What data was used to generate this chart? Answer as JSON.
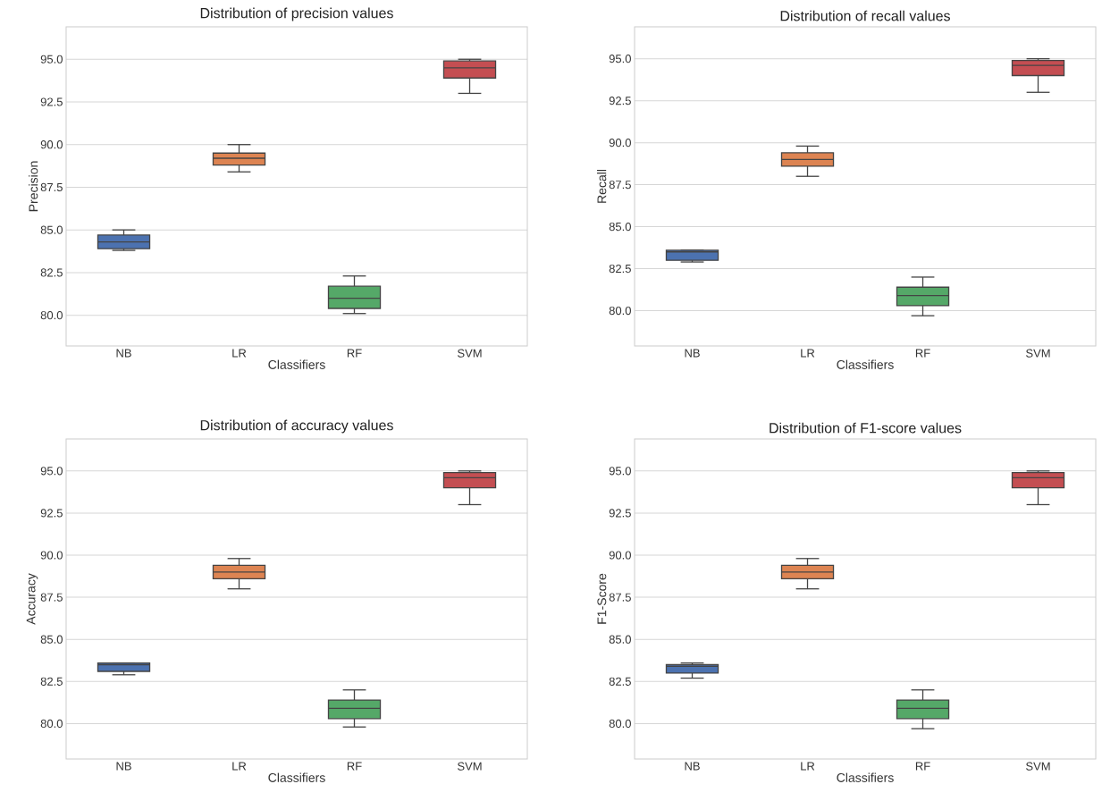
{
  "chart_data": [
    {
      "type": "box",
      "title": "Distribution of precision values",
      "xlabel": "Classifiers",
      "ylabel": "Precision",
      "categories": [
        "NB",
        "LR",
        "RF",
        "SVM"
      ],
      "colors": [
        "#4c72b0",
        "#dd8452",
        "#55a868",
        "#c44e52"
      ],
      "grid": "y",
      "ylim": [
        78.2,
        96.9
      ],
      "yticks": [
        {
          "value": 80,
          "label": "80.0"
        },
        {
          "value": 82.5,
          "label": "82.5"
        },
        {
          "value": 85,
          "label": "85.0"
        },
        {
          "value": 87.5,
          "label": "87.5"
        },
        {
          "value": 90,
          "label": "90.0"
        },
        {
          "value": 92.5,
          "label": "92.5"
        },
        {
          "value": 95,
          "label": "95.0"
        }
      ],
      "boxes": [
        {
          "low": 83.8,
          "q1": 83.9,
          "median": 84.3,
          "q3": 84.7,
          "high": 85.0
        },
        {
          "low": 88.4,
          "q1": 88.8,
          "median": 89.2,
          "q3": 89.5,
          "high": 90.0
        },
        {
          "low": 80.1,
          "q1": 80.4,
          "median": 81.0,
          "q3": 81.7,
          "high": 82.3
        },
        {
          "low": 93.0,
          "q1": 93.9,
          "median": 94.5,
          "q3": 94.9,
          "high": 95.0
        }
      ]
    },
    {
      "type": "box",
      "title": "Distribution of recall values",
      "xlabel": "Classifiers",
      "ylabel": "Recall",
      "categories": [
        "NB",
        "LR",
        "RF",
        "SVM"
      ],
      "colors": [
        "#4c72b0",
        "#dd8452",
        "#55a868",
        "#c44e52"
      ],
      "grid": "y",
      "ylim": [
        77.9,
        96.9
      ],
      "yticks": [
        {
          "value": 80,
          "label": "80.0"
        },
        {
          "value": 82.5,
          "label": "82.5"
        },
        {
          "value": 85,
          "label": "85.0"
        },
        {
          "value": 87.5,
          "label": "87.5"
        },
        {
          "value": 90,
          "label": "90.0"
        },
        {
          "value": 92.5,
          "label": "92.5"
        },
        {
          "value": 95,
          "label": "95.0"
        }
      ],
      "boxes": [
        {
          "low": 82.9,
          "q1": 83.0,
          "median": 83.5,
          "q3": 83.6,
          "high": 83.6
        },
        {
          "low": 88.0,
          "q1": 88.6,
          "median": 89.0,
          "q3": 89.4,
          "high": 89.8
        },
        {
          "low": 79.7,
          "q1": 80.3,
          "median": 80.9,
          "q3": 81.4,
          "high": 82.0
        },
        {
          "low": 93.0,
          "q1": 94.0,
          "median": 94.6,
          "q3": 94.9,
          "high": 95.0
        }
      ]
    },
    {
      "type": "box",
      "title": "Distribution of accuracy values",
      "xlabel": "Classifiers",
      "ylabel": "Accuracy",
      "categories": [
        "NB",
        "LR",
        "RF",
        "SVM"
      ],
      "colors": [
        "#4c72b0",
        "#dd8452",
        "#55a868",
        "#c44e52"
      ],
      "grid": "y",
      "ylim": [
        77.9,
        96.9
      ],
      "yticks": [
        {
          "value": 80,
          "label": "80.0"
        },
        {
          "value": 82.5,
          "label": "82.5"
        },
        {
          "value": 85,
          "label": "85.0"
        },
        {
          "value": 87.5,
          "label": "87.5"
        },
        {
          "value": 90,
          "label": "90.0"
        },
        {
          "value": 92.5,
          "label": "92.5"
        },
        {
          "value": 95,
          "label": "95.0"
        }
      ],
      "boxes": [
        {
          "low": 82.9,
          "q1": 83.1,
          "median": 83.5,
          "q3": 83.6,
          "high": 83.6
        },
        {
          "low": 88.0,
          "q1": 88.6,
          "median": 89.0,
          "q3": 89.4,
          "high": 89.8
        },
        {
          "low": 79.8,
          "q1": 80.3,
          "median": 80.9,
          "q3": 81.4,
          "high": 82.0
        },
        {
          "low": 93.0,
          "q1": 94.0,
          "median": 94.6,
          "q3": 94.9,
          "high": 95.0
        }
      ]
    },
    {
      "type": "box",
      "title": "Distribution of F1-score values",
      "xlabel": "Classifiers",
      "ylabel": "F1-Score",
      "categories": [
        "NB",
        "LR",
        "RF",
        "SVM"
      ],
      "colors": [
        "#4c72b0",
        "#dd8452",
        "#55a868",
        "#c44e52"
      ],
      "grid": "y",
      "ylim": [
        77.9,
        96.9
      ],
      "yticks": [
        {
          "value": 80,
          "label": "80.0"
        },
        {
          "value": 82.5,
          "label": "82.5"
        },
        {
          "value": 85,
          "label": "85.0"
        },
        {
          "value": 87.5,
          "label": "87.5"
        },
        {
          "value": 90,
          "label": "90.0"
        },
        {
          "value": 92.5,
          "label": "92.5"
        },
        {
          "value": 95,
          "label": "95.0"
        }
      ],
      "boxes": [
        {
          "low": 82.7,
          "q1": 83.0,
          "median": 83.4,
          "q3": 83.5,
          "high": 83.6
        },
        {
          "low": 88.0,
          "q1": 88.6,
          "median": 89.0,
          "q3": 89.4,
          "high": 89.8
        },
        {
          "low": 79.7,
          "q1": 80.3,
          "median": 80.9,
          "q3": 81.4,
          "high": 82.0
        },
        {
          "low": 93.0,
          "q1": 94.0,
          "median": 94.6,
          "q3": 94.9,
          "high": 95.0
        }
      ]
    }
  ]
}
